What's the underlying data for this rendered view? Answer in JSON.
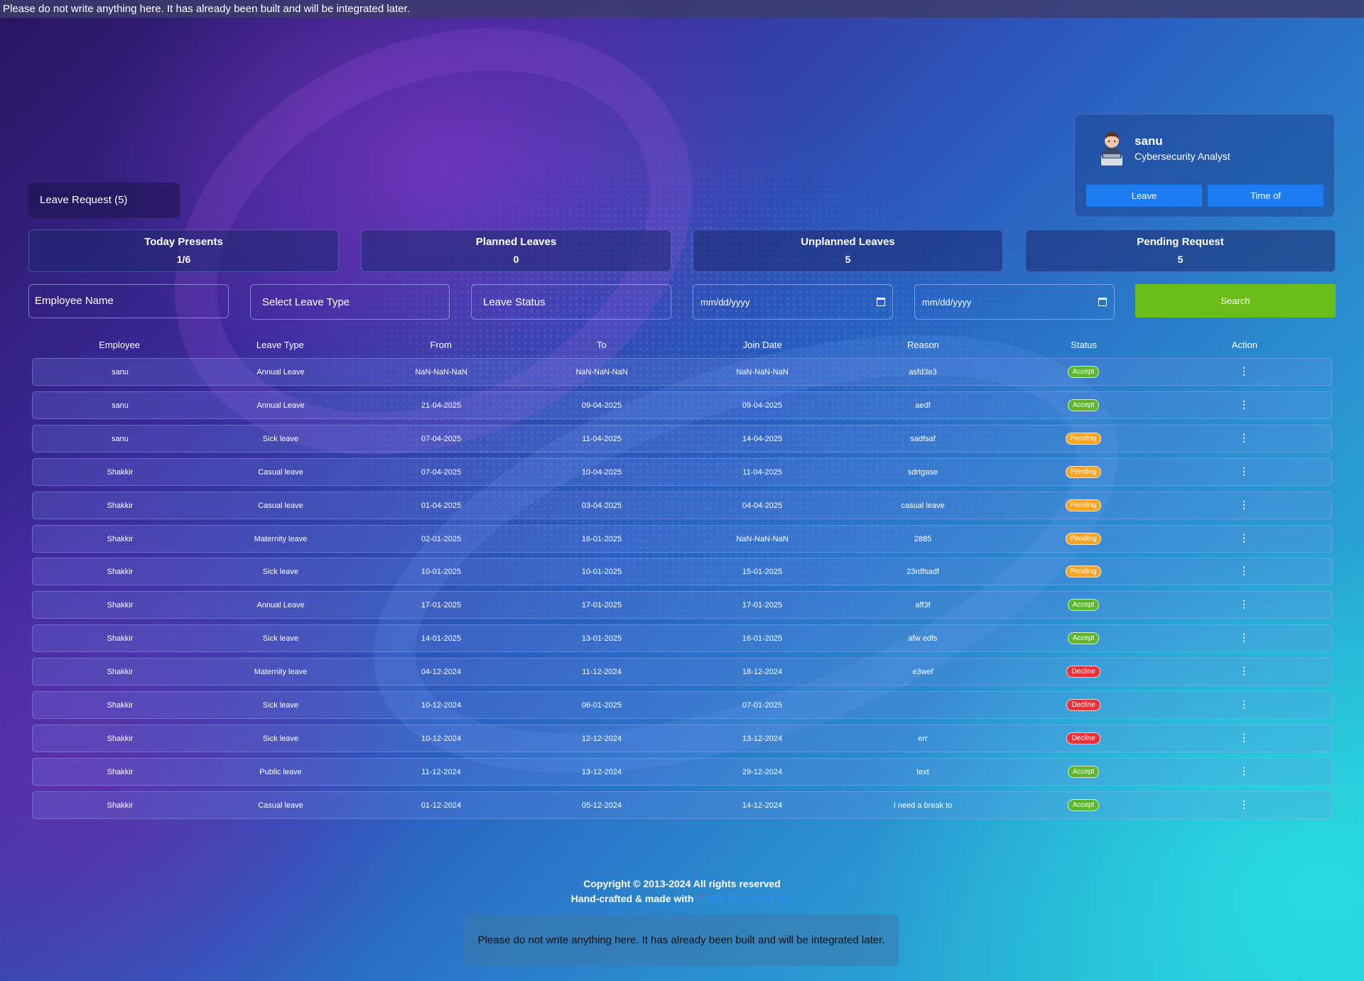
{
  "banner": {
    "text": "Please do not write anything here. It has already been built and will be integrated later."
  },
  "profile": {
    "name": "sanu",
    "role": "Cybersecurity Analyst",
    "leave_label": "Leave",
    "timeoff_label": "Time of"
  },
  "page": {
    "title": "Leave Request (5)"
  },
  "stats": [
    {
      "label": "Today Presents",
      "value": "1/6"
    },
    {
      "label": "Planned Leaves",
      "value": "0"
    },
    {
      "label": "Unplanned Leaves",
      "value": "5"
    },
    {
      "label": "Pending Request",
      "value": "5"
    }
  ],
  "filters": {
    "employee_placeholder": "Employee Name",
    "leave_type_placeholder": "Select Leave Type",
    "status_placeholder": "Leave Status",
    "from_placeholder": "mm/dd/yyyy",
    "to_placeholder": "mm/dd/yyyy",
    "search_label": "Search"
  },
  "table": {
    "headers": [
      "Employee",
      "Leave Type",
      "From",
      "To",
      "Join Date",
      "Reason",
      "Status",
      "Action"
    ],
    "rows": [
      [
        "sanu",
        "Annual Leave",
        "NaN-NaN-NaN",
        "NaN-NaN-NaN",
        "NaN-NaN-NaN",
        "asfd3e3",
        "Accept"
      ],
      [
        "sanu",
        "Annual Leave",
        "21-04-2025",
        "09-04-2025",
        "09-04-2025",
        "aedf",
        "Accept"
      ],
      [
        "sanu",
        "Sick leave",
        "07-04-2025",
        "11-04-2025",
        "14-04-2025",
        "sadfsaf",
        "Pending"
      ],
      [
        "Shakkir",
        "Casual leave",
        "07-04-2025",
        "10-04-2025",
        "11-04-2025",
        "sdrtgase",
        "Pending"
      ],
      [
        "Shakkir",
        "Casual leave",
        "01-04-2025",
        "03-04-2025",
        "04-04-2025",
        "casual leave",
        "Pending"
      ],
      [
        "Shakkir",
        "Maternity leave",
        "02-01-2025",
        "16-01-2025",
        "NaN-NaN-NaN",
        "2885",
        "Pending"
      ],
      [
        "Shakkir",
        "Sick leave",
        "10-01-2025",
        "10-01-2025",
        "15-01-2025",
        "23rdfsadf",
        "Pending"
      ],
      [
        "Shakkir",
        "Annual Leave",
        "17-01-2025",
        "17-01-2025",
        "17-01-2025",
        "aff3f",
        "Accept"
      ],
      [
        "Shakkir",
        "Sick leave",
        "14-01-2025",
        "13-01-2025",
        "16-01-2025",
        "afw edfs",
        "Accept"
      ],
      [
        "Shakkir",
        "Maternity leave",
        "04-12-2024",
        "11-12-2024",
        "18-12-2024",
        "e3wef",
        "Decline"
      ],
      [
        "Shakkir",
        "Sick leave",
        "10-12-2024",
        "06-01-2025",
        "07-01-2025",
        "",
        "Decline"
      ],
      [
        "Shakkir",
        "Sick leave",
        "10-12-2024",
        "12-12-2024",
        "13-12-2024",
        "err",
        "Decline"
      ],
      [
        "Shakkir",
        "Public leave",
        "11-12-2024",
        "13-12-2024",
        "29-12-2024",
        "text",
        "Accept"
      ],
      [
        "Shakkir",
        "Casual leave",
        "01-12-2024",
        "05-12-2024",
        "14-12-2024",
        "I need a break to",
        "Accept"
      ]
    ],
    "action_icon": "more-vertical-icon"
  },
  "status_colors": {
    "Accept": "#5cb82a",
    "Pending": "#f5a523",
    "Decline": "#e8323a"
  },
  "footer": {
    "copyright": "Copyright © 2013-2024 All rights reserved",
    "made_with": "Hand-crafted & made with",
    "heart": "♡",
    "company": "IXB TECH Pvt. Ltd.",
    "placeholder_box": "Please do not write anything here. It has already been built and will be integrated later."
  }
}
